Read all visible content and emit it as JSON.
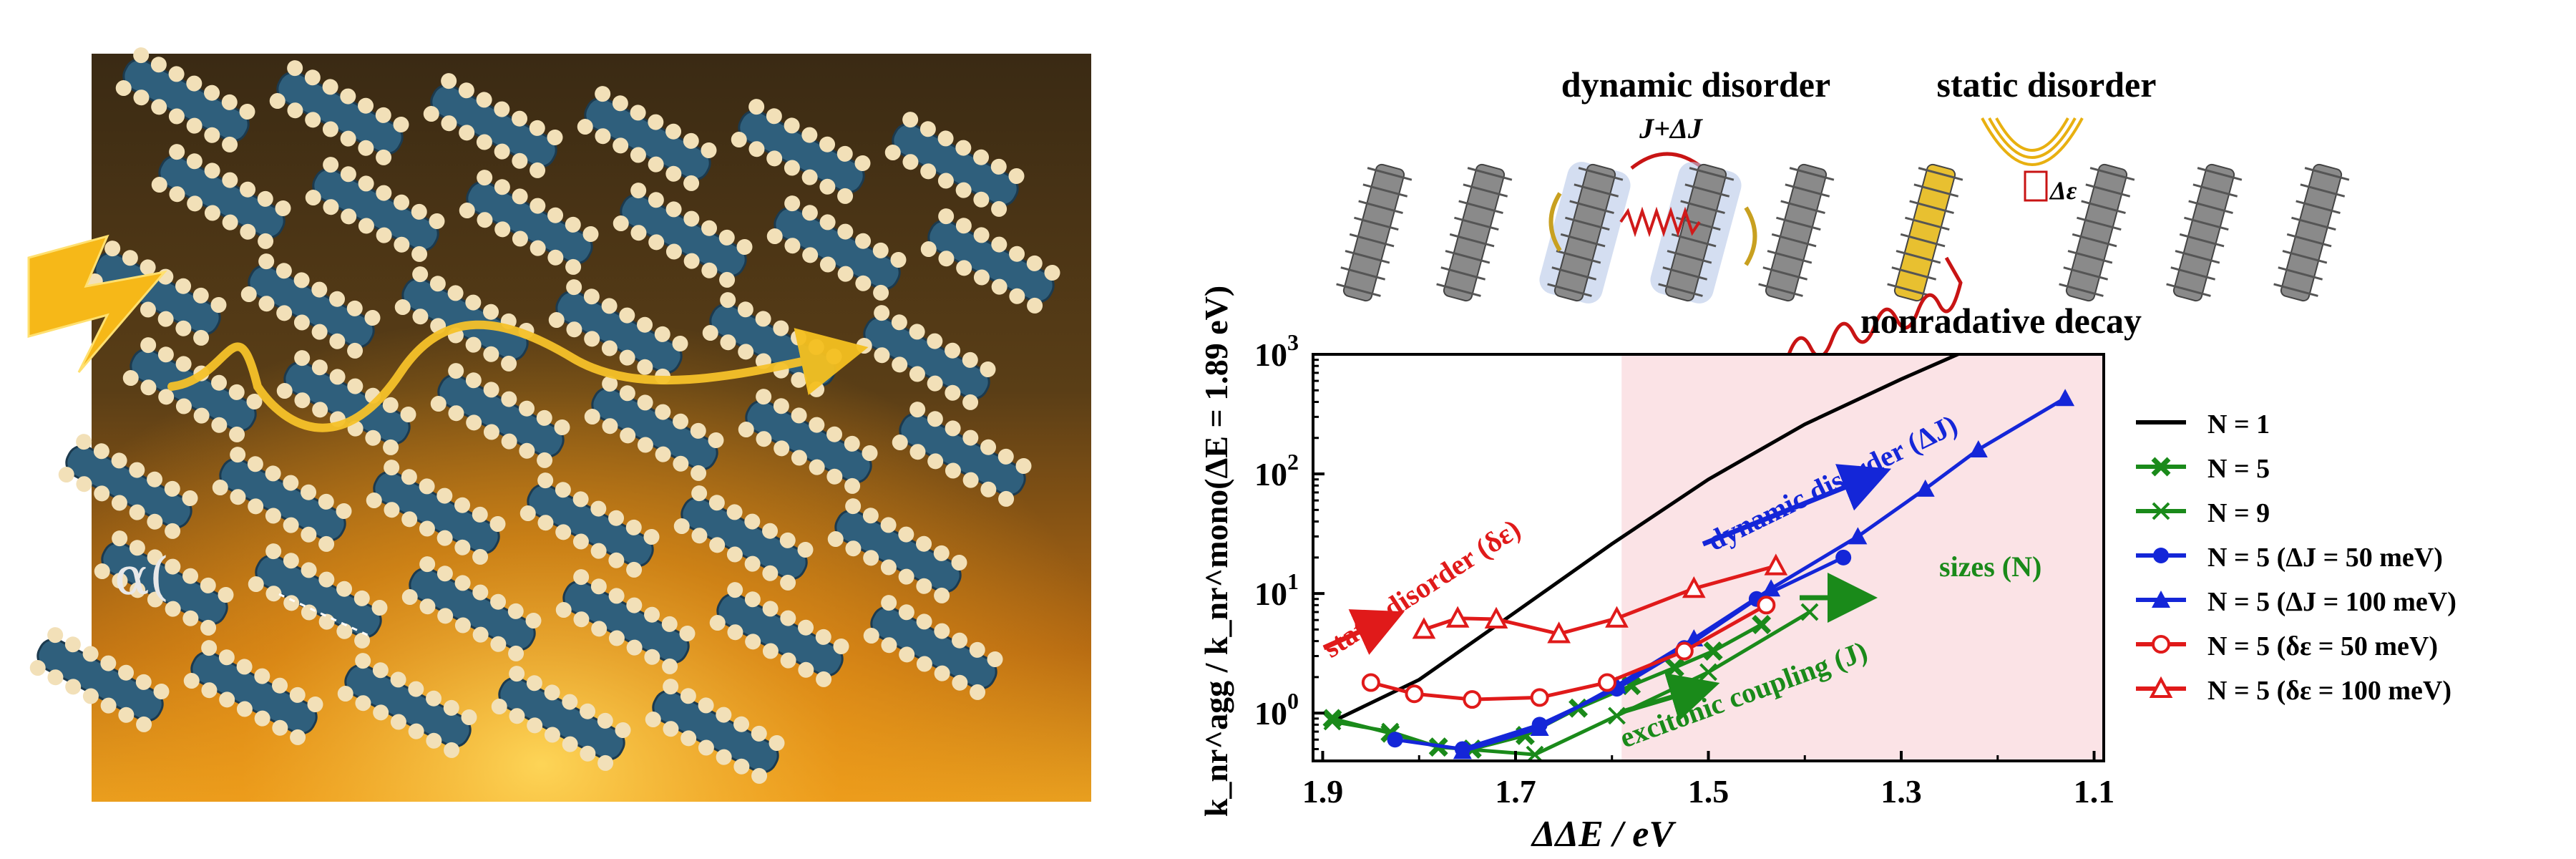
{
  "schematic": {
    "dynamic_label": "dynamic disorder",
    "static_label": "static disorder",
    "coupling_label": "J+ΔJ",
    "delta_eps_label": "Δε",
    "decay_label": "nonradative decay"
  },
  "illustration": {
    "alpha_label": "α(",
    "icon": "lightning-bolt-icon"
  },
  "chart_data": {
    "type": "line",
    "xlabel": "ΔE / eV",
    "ylabel": "k_nr^agg / k_nr^mono(ΔE = 1.89 eV)",
    "x_reversed": true,
    "xlim": [
      1.91,
      1.09
    ],
    "ylim_log10": [
      -0.4,
      3
    ],
    "y_scale": "log",
    "x_ticks": [
      "1.9",
      "1.7",
      "1.5",
      "1.3",
      "1.1"
    ],
    "x_tick_values": [
      1.9,
      1.7,
      1.5,
      1.3,
      1.1
    ],
    "y_ticks": [
      "10^0",
      "10^1",
      "10^2",
      "10^3"
    ],
    "y_tick_exponents": [
      0,
      1,
      2,
      3
    ],
    "shaded_region_x": [
      1.59,
      1.09
    ],
    "shade_color": "#fbe3e6",
    "series": [
      {
        "name": "N = 1",
        "color": "#000000",
        "marker": "none",
        "x": [
          1.89,
          1.8,
          1.7,
          1.6,
          1.5,
          1.4,
          1.3,
          1.2
        ],
        "y": [
          0.85,
          1.9,
          7.0,
          26.0,
          90.0,
          260.0,
          620.0,
          1400.0
        ]
      },
      {
        "name": "N = 5",
        "color": "#1a8a1a",
        "marker": "x-bold",
        "x": [
          1.89,
          1.83,
          1.78,
          1.745,
          1.69,
          1.635,
          1.58,
          1.535,
          1.495,
          1.445
        ],
        "y": [
          0.9,
          0.68,
          0.52,
          0.5,
          0.65,
          1.1,
          1.7,
          2.4,
          3.3,
          5.5
        ]
      },
      {
        "name": "N = 9",
        "color": "#1a8a1a",
        "marker": "x",
        "x": [
          1.89,
          1.83,
          1.78,
          1.68,
          1.595,
          1.5,
          1.395
        ],
        "y": [
          0.85,
          0.7,
          0.52,
          0.45,
          0.95,
          2.2,
          7.0
        ]
      },
      {
        "name": "N = 5 (ΔJ = 50 meV)",
        "color": "#1426d8",
        "marker": "circle",
        "x": [
          1.825,
          1.755,
          1.675,
          1.595,
          1.525,
          1.45,
          1.36
        ],
        "y": [
          0.6,
          0.5,
          0.8,
          1.6,
          3.5,
          9.0,
          20.0
        ]
      },
      {
        "name": "N = 5 (ΔJ = 100 meV)",
        "color": "#1426d8",
        "marker": "triangle",
        "x": [
          1.755,
          1.675,
          1.595,
          1.515,
          1.435,
          1.345,
          1.275,
          1.22,
          1.13
        ],
        "y": [
          0.48,
          0.75,
          1.7,
          4.2,
          11.0,
          30.0,
          75.0,
          160.0,
          430.0
        ]
      },
      {
        "name": "N = 5 (δε = 50 meV)",
        "color": "#e01a1a",
        "marker": "circle-open",
        "x": [
          1.85,
          1.805,
          1.745,
          1.675,
          1.605,
          1.525,
          1.44
        ],
        "y": [
          1.8,
          1.45,
          1.3,
          1.35,
          1.8,
          3.3,
          8.0
        ]
      },
      {
        "name": "N = 5 (δε = 100 meV)",
        "color": "#e01a1a",
        "marker": "triangle-open",
        "x": [
          1.795,
          1.76,
          1.72,
          1.655,
          1.595,
          1.515,
          1.43
        ],
        "y": [
          5.0,
          6.2,
          6.1,
          4.6,
          6.2,
          11.0,
          17.0
        ]
      }
    ],
    "annotations": [
      {
        "text": "static disorder (δε)",
        "color": "#e01a1a"
      },
      {
        "text": "dynamic disorder (ΔJ)",
        "color": "#1426d8"
      },
      {
        "text": "sizes (N)",
        "color": "#1a8a1a"
      },
      {
        "text": "excitonic coupling (J)",
        "color": "#1a8a1a"
      }
    ],
    "legend_position": "right"
  }
}
